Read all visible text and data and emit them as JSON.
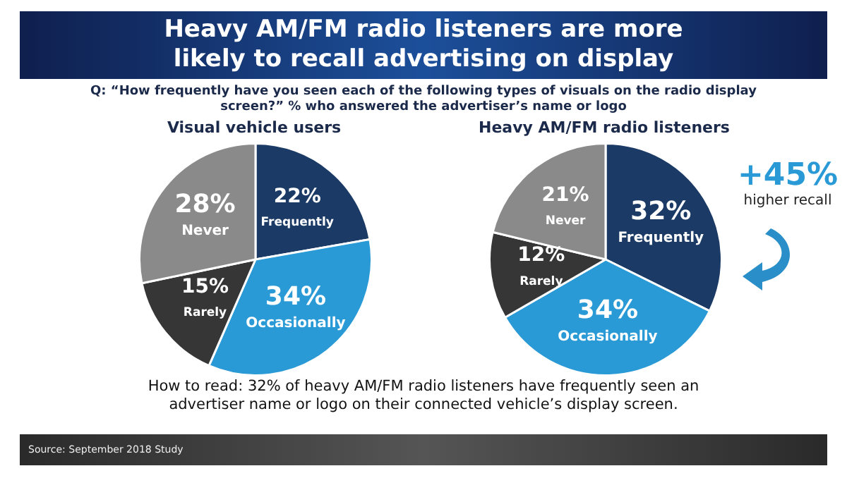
{
  "chart_data": [
    {
      "type": "other",
      "title": "Heavy AM/FM radio listeners are more likely to recall advertising on display",
      "subtitle": "Q: “How frequently have you seen each of the following types of visuals on the radio display screen?” % who answered the advertiser’s name or logo"
    },
    {
      "type": "pie",
      "title": "Visual vehicle users",
      "categories": [
        "Frequently",
        "Occasionally",
        "Rarely",
        "Never"
      ],
      "values": [
        22,
        34,
        15,
        28
      ],
      "value_labels": [
        "22%",
        "34%",
        "15%",
        "28%"
      ],
      "colors": [
        "#1b3a66",
        "#2a9ad6",
        "#363636",
        "#8a8a8a"
      ]
    },
    {
      "type": "pie",
      "title": "Heavy AM/FM radio listeners",
      "categories": [
        "Frequently",
        "Occasionally",
        "Rarely",
        "Never"
      ],
      "values": [
        32,
        34,
        12,
        21
      ],
      "value_labels": [
        "32%",
        "34%",
        "12%",
        "21%"
      ],
      "colors": [
        "#1b3a66",
        "#2a9ad6",
        "#363636",
        "#8a8a8a"
      ],
      "annotations": [
        "+45%",
        "higher recall"
      ]
    },
    {
      "type": "other",
      "annotations": [
        "How to read: 32% of heavy AM/FM radio listeners have frequently seen an advertiser name or logo on their connected vehicle’s display screen.",
        "Source: September 2018 Study"
      ]
    }
  ]
}
